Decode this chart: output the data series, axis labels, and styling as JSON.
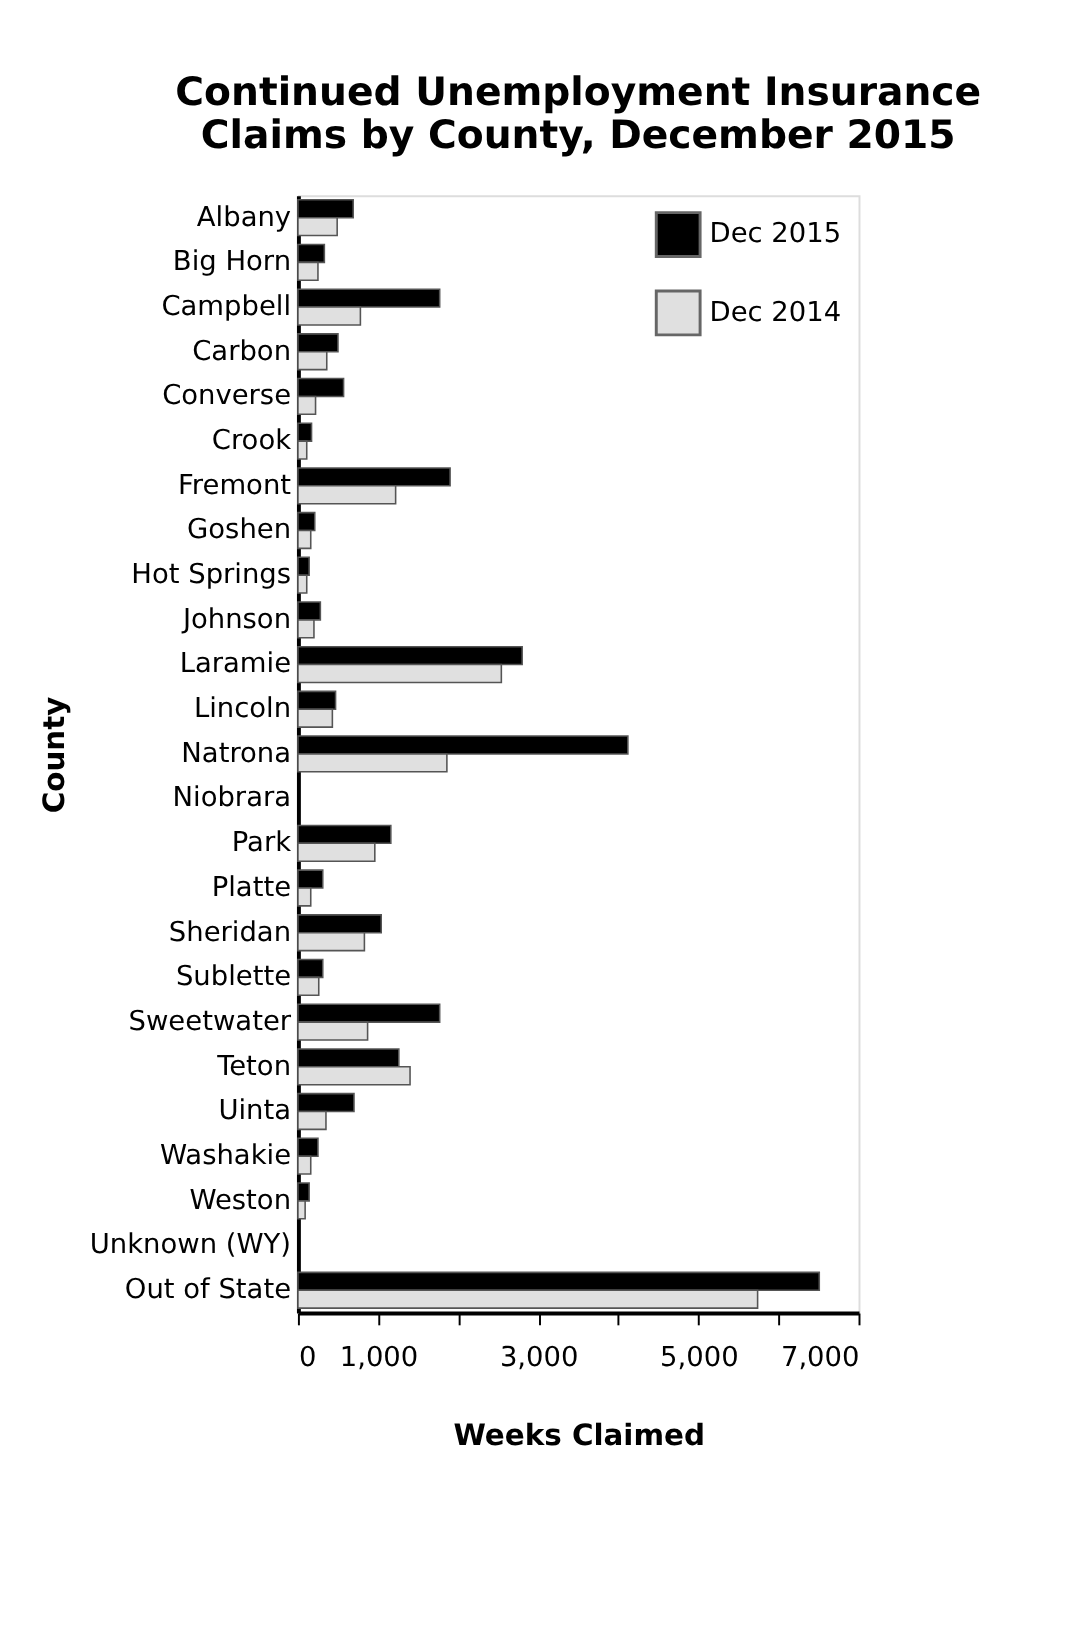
{
  "chart_data": {
    "type": "bar",
    "orientation": "horizontal",
    "title": "Continued Unemployment Insurance Claims by County, December 2015",
    "xlabel": "Weeks Claimed",
    "ylabel": "County",
    "categories": [
      "Albany",
      "Big Horn",
      "Campbell",
      "Carbon",
      "Converse",
      "Crook",
      "Fremont",
      "Goshen",
      "Hot Springs",
      "Johnson",
      "Laramie",
      "Lincoln",
      "Natrona",
      "Niobrara",
      "Park",
      "Platte",
      "Sheridan",
      "Sublette",
      "Sweetwater",
      "Teton",
      "Uinta",
      "Washakie",
      "Weston",
      "Unknown (WY)",
      "Out of State"
    ],
    "series": [
      {
        "name": "Dec 2015",
        "color": "#000000",
        "values": [
          690,
          330,
          1770,
          500,
          570,
          170,
          1900,
          210,
          140,
          280,
          2800,
          470,
          4120,
          null,
          1160,
          310,
          1040,
          310,
          1770,
          1260,
          700,
          250,
          140,
          null,
          6510
        ]
      },
      {
        "name": "Dec 2014",
        "color": "#e0e0e0",
        "values": [
          490,
          250,
          780,
          360,
          220,
          110,
          1220,
          160,
          110,
          200,
          2540,
          430,
          1860,
          null,
          960,
          160,
          830,
          260,
          870,
          1400,
          350,
          160,
          90,
          null,
          5740
        ]
      }
    ],
    "xlim": [
      0,
      7000
    ],
    "xticks": [
      0,
      {
        "value": 1000,
        "label": "1,000"
      },
      {
        "value": 2000,
        "label": null
      },
      {
        "value": 3000,
        "label": "3,000"
      },
      {
        "value": 4000,
        "label": null
      },
      {
        "value": 5000,
        "label": "5,000"
      },
      {
        "value": 6000,
        "label": null
      },
      {
        "value": 7000,
        "label": "7,000"
      }
    ],
    "legend": "top right",
    "grid": false
  }
}
